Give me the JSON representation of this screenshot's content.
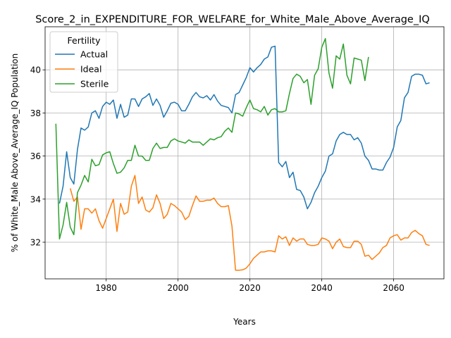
{
  "chart_data": {
    "type": "line",
    "title": "Score_2_in_EXPENDITURE_FOR_WELFARE_for_White_Male_Above_Average_IQ",
    "xlabel": "Years",
    "ylabel": "% of White_Male Above_Average_IQ Population",
    "xlim": [
      1963,
      2074
    ],
    "ylim": [
      30.3,
      42.0
    ],
    "x_ticks": [
      1980,
      2000,
      2020,
      2040,
      2060
    ],
    "y_ticks": [
      32,
      34,
      36,
      38,
      40
    ],
    "grid": true,
    "legend": {
      "title": "Fertility",
      "placement": "top-left"
    },
    "series": [
      {
        "name": "Actual",
        "color": "#1f77b4",
        "x": [
          1967,
          1968,
          1969,
          1970,
          1971,
          1972,
          1973,
          1974,
          1975,
          1976,
          1977,
          1978,
          1979,
          1980,
          1981,
          1982,
          1983,
          1984,
          1985,
          1986,
          1987,
          1988,
          1989,
          1990,
          1991,
          1992,
          1993,
          1994,
          1995,
          1996,
          1997,
          1998,
          1999,
          2000,
          2001,
          2002,
          2003,
          2004,
          2005,
          2006,
          2007,
          2008,
          2009,
          2010,
          2011,
          2012,
          2013,
          2014,
          2015,
          2016,
          2017,
          2018,
          2019,
          2020,
          2021,
          2022,
          2023,
          2024,
          2025,
          2026,
          2027,
          2028,
          2029,
          2030,
          2031,
          2032,
          2033,
          2034,
          2035,
          2036,
          2037,
          2038,
          2039,
          2040,
          2041,
          2042,
          2043,
          2044,
          2045,
          2046,
          2047,
          2048,
          2049,
          2050,
          2051,
          2052,
          2053,
          2054,
          2055,
          2056,
          2057,
          2058,
          2059,
          2060,
          2061,
          2062,
          2063,
          2064,
          2065,
          2066,
          2067,
          2068,
          2069,
          2070
        ],
        "values": [
          33.8,
          34.6,
          36.2,
          35.0,
          34.7,
          36.3,
          37.3,
          37.2,
          37.35,
          38.0,
          38.1,
          37.75,
          38.3,
          38.5,
          38.4,
          38.6,
          37.75,
          38.4,
          37.8,
          37.9,
          38.65,
          38.65,
          38.3,
          38.65,
          38.75,
          38.9,
          38.35,
          38.65,
          38.35,
          37.8,
          38.1,
          38.45,
          38.5,
          38.4,
          38.1,
          38.1,
          38.4,
          38.75,
          38.95,
          38.75,
          38.7,
          38.8,
          38.6,
          38.85,
          38.55,
          38.35,
          38.3,
          38.25,
          38.0,
          38.85,
          38.95,
          39.3,
          39.65,
          40.1,
          39.9,
          40.1,
          40.25,
          40.5,
          40.6,
          41.05,
          41.1,
          35.7,
          35.5,
          35.75,
          35.0,
          35.25,
          34.45,
          34.4,
          34.1,
          33.55,
          33.85,
          34.3,
          34.6,
          35.0,
          35.3,
          36.0,
          36.1,
          36.7,
          37.0,
          37.1,
          37.0,
          37.0,
          36.75,
          36.85,
          36.6,
          36.0,
          35.8,
          35.4,
          35.4,
          35.35,
          35.35,
          35.7,
          35.95,
          36.4,
          37.35,
          37.65,
          38.7,
          38.95,
          39.7,
          39.8,
          39.8,
          39.75,
          39.35,
          39.4
        ]
      },
      {
        "name": "Ideal",
        "color": "#ff7f0e",
        "x": [
          1970,
          1971,
          1972,
          1973,
          1974,
          1975,
          1976,
          1977,
          1978,
          1979,
          1980,
          1981,
          1982,
          1983,
          1984,
          1985,
          1986,
          1987,
          1988,
          1989,
          1990,
          1991,
          1992,
          1993,
          1994,
          1995,
          1996,
          1997,
          1998,
          1999,
          2000,
          2001,
          2002,
          2003,
          2004,
          2005,
          2006,
          2007,
          2008,
          2009,
          2010,
          2011,
          2012,
          2013,
          2014,
          2015,
          2016,
          2017,
          2018,
          2019,
          2020,
          2021,
          2022,
          2023,
          2024,
          2025,
          2026,
          2027,
          2028,
          2029,
          2030,
          2031,
          2032,
          2033,
          2034,
          2035,
          2036,
          2037,
          2038,
          2039,
          2040,
          2041,
          2042,
          2043,
          2044,
          2045,
          2046,
          2047,
          2048,
          2049,
          2050,
          2051,
          2052,
          2053,
          2054,
          2055,
          2056,
          2057,
          2058,
          2059,
          2060,
          2061,
          2062,
          2063,
          2064,
          2065,
          2066,
          2067,
          2068,
          2069,
          2070
        ],
        "values": [
          34.5,
          33.9,
          34.1,
          32.6,
          33.55,
          33.55,
          33.35,
          33.55,
          33.0,
          32.65,
          33.1,
          33.55,
          34.0,
          32.5,
          33.8,
          33.3,
          33.4,
          34.6,
          35.1,
          33.8,
          34.1,
          33.5,
          33.4,
          33.6,
          34.2,
          33.8,
          33.1,
          33.3,
          33.8,
          33.7,
          33.55,
          33.4,
          33.05,
          33.2,
          33.7,
          34.15,
          33.9,
          33.9,
          33.95,
          33.95,
          34.05,
          33.8,
          33.65,
          33.65,
          33.7,
          32.75,
          30.7,
          30.7,
          30.72,
          30.8,
          31.0,
          31.25,
          31.4,
          31.55,
          31.55,
          31.6,
          31.6,
          31.55,
          32.3,
          32.15,
          32.25,
          31.85,
          32.2,
          32.05,
          32.15,
          32.15,
          31.9,
          31.85,
          31.85,
          31.9,
          32.2,
          32.15,
          32.05,
          31.7,
          32.0,
          32.15,
          31.8,
          31.75,
          31.75,
          32.05,
          32.05,
          31.9,
          31.35,
          31.4,
          31.2,
          31.35,
          31.5,
          31.75,
          31.85,
          32.2,
          32.3,
          32.35,
          32.1,
          32.2,
          32.2,
          32.45,
          32.55,
          32.4,
          32.3,
          31.9,
          31.85
        ]
      },
      {
        "name": "Sterile",
        "color": "#2ca02c",
        "x": [
          1966,
          1967,
          1968,
          1969,
          1970,
          1971,
          1972,
          1973,
          1974,
          1975,
          1976,
          1977,
          1978,
          1979,
          1980,
          1981,
          1982,
          1983,
          1984,
          1985,
          1986,
          1987,
          1988,
          1989,
          1990,
          1991,
          1992,
          1993,
          1994,
          1995,
          1996,
          1997,
          1998,
          1999,
          2000,
          2001,
          2002,
          2003,
          2004,
          2005,
          2006,
          2007,
          2008,
          2009,
          2010,
          2011,
          2012,
          2013,
          2014,
          2015,
          2016,
          2017,
          2018,
          2019,
          2020,
          2021,
          2022,
          2023,
          2024,
          2025,
          2026,
          2027,
          2028,
          2029,
          2030,
          2031,
          2032,
          2033,
          2034,
          2035,
          2036,
          2037,
          2038,
          2039,
          2040,
          2041,
          2042,
          2043,
          2044,
          2045,
          2046,
          2047,
          2048,
          2049,
          2050,
          2051,
          2052,
          2053
        ],
        "values": [
          37.5,
          32.15,
          32.8,
          33.85,
          32.7,
          32.35,
          34.3,
          34.65,
          35.1,
          34.8,
          35.85,
          35.55,
          35.6,
          36.05,
          36.15,
          36.2,
          35.65,
          35.2,
          35.25,
          35.45,
          35.8,
          35.8,
          36.5,
          36.0,
          36.0,
          35.8,
          35.8,
          36.35,
          36.6,
          36.35,
          36.4,
          36.4,
          36.7,
          36.8,
          36.7,
          36.65,
          36.6,
          36.75,
          36.65,
          36.65,
          36.65,
          36.5,
          36.65,
          36.8,
          36.75,
          36.85,
          36.9,
          37.15,
          37.3,
          37.1,
          38.0,
          37.95,
          37.85,
          38.25,
          38.6,
          38.2,
          38.15,
          38.05,
          38.3,
          37.9,
          38.15,
          38.2,
          38.05,
          38.05,
          38.1,
          38.9,
          39.6,
          39.8,
          39.7,
          39.4,
          39.55,
          38.4,
          39.75,
          40.05,
          41.05,
          41.45,
          39.85,
          39.15,
          40.65,
          40.5,
          41.2,
          39.75,
          39.35,
          40.55,
          40.5,
          40.45,
          39.5,
          40.6
        ]
      }
    ]
  }
}
